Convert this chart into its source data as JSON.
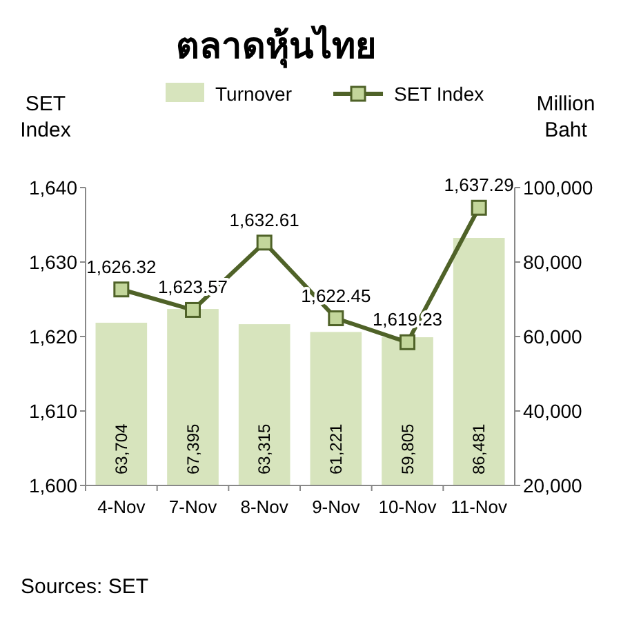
{
  "chart_data": {
    "type": "bar",
    "title": "ตลาดหุ้นไทย",
    "ylabel": "SET Index",
    "y2label": "Million Baht",
    "annotations": [
      "Sources: SET"
    ],
    "categories": [
      "4-Nov",
      "7-Nov",
      "8-Nov",
      "9-Nov",
      "10-Nov",
      "11-Nov"
    ],
    "series": [
      {
        "name": "Turnover",
        "axis": "y2",
        "color": "#d7e4bd",
        "values": [
          63704,
          67395,
          63315,
          61221,
          59805,
          86481
        ],
        "value_labels": [
          "63,704",
          "67,395",
          "63,315",
          "61,221",
          "59,805",
          "86,481"
        ]
      },
      {
        "name": "SET Index",
        "type": "line",
        "axis": "y",
        "color": "#4f6228",
        "marker": "square",
        "values": [
          1626.32,
          1623.57,
          1632.61,
          1622.45,
          1619.23,
          1637.29
        ],
        "value_labels": [
          "1,626.32",
          "1,623.57",
          "1,632.61",
          "1,622.45",
          "1,619.23",
          "1,637.29"
        ]
      }
    ],
    "ylim": [
      1600,
      1640
    ],
    "yticks": [
      {
        "value": 1600,
        "label": "1,600"
      },
      {
        "value": 1610,
        "label": "1,610"
      },
      {
        "value": 1620,
        "label": "1,620"
      },
      {
        "value": 1630,
        "label": "1,630"
      },
      {
        "value": 1640,
        "label": "1,640"
      }
    ],
    "y2lim": [
      20000,
      100000
    ],
    "y2ticks": [
      {
        "value": 20000,
        "label": "20,000"
      },
      {
        "value": 40000,
        "label": "40,000"
      },
      {
        "value": 60000,
        "label": "60,000"
      },
      {
        "value": 80000,
        "label": "80,000"
      },
      {
        "value": 100000,
        "label": "100,000"
      }
    ],
    "legend": "top",
    "grid": false
  }
}
